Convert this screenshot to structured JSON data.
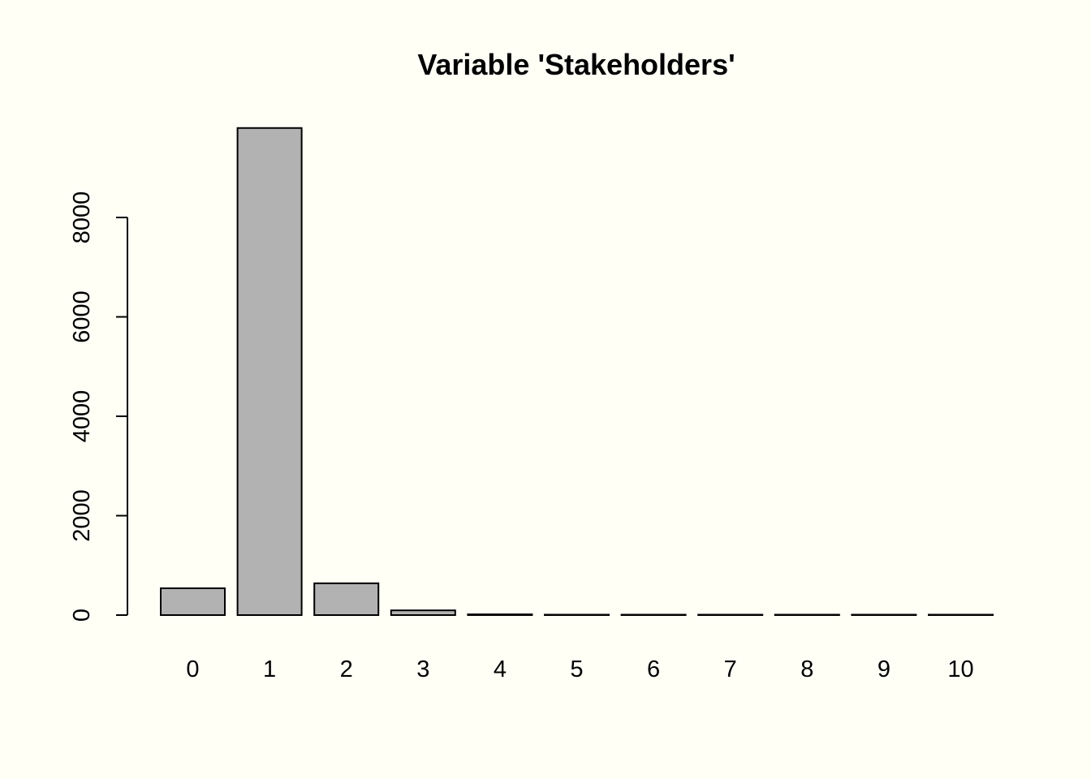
{
  "chart_data": {
    "type": "bar",
    "title": "Variable 'Stakeholders'",
    "xlabel": "",
    "ylabel": "",
    "categories": [
      "0",
      "1",
      "2",
      "3",
      "4",
      "5",
      "6",
      "7",
      "8",
      "9",
      "10"
    ],
    "values": [
      540,
      9800,
      640,
      95,
      15,
      5,
      3,
      2,
      2,
      2,
      3
    ],
    "ylim": [
      0,
      9800
    ],
    "yticks": [
      0,
      2000,
      4000,
      6000,
      8000
    ],
    "ytick_labels": [
      "0",
      "2000",
      "4000",
      "6000",
      "8000"
    ],
    "grid": false,
    "legend": "none",
    "colors": {
      "background": "#fffff6",
      "bar_fill": "#b2b2b2",
      "bar_stroke": "#000000",
      "text": "#000000"
    }
  }
}
